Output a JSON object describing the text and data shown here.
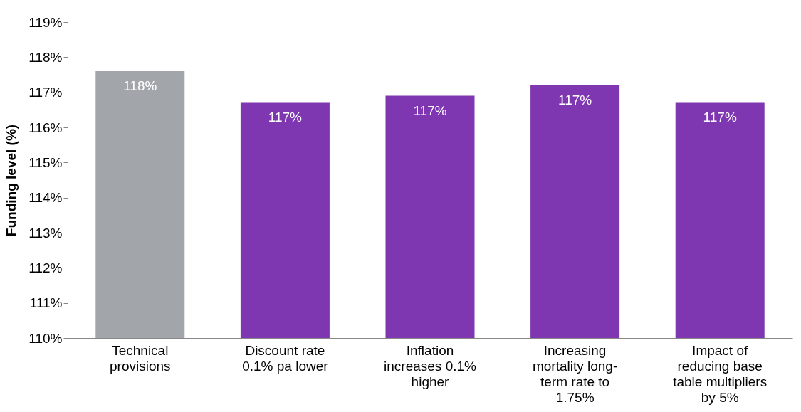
{
  "chart_data": {
    "type": "bar",
    "ylabel": "Funding level (%)",
    "categories": [
      "Technical provisions",
      "Discount rate 0.1% pa lower",
      "Inflation increases 0.1% higher",
      "Increasing mortality long-term rate to 1.75%",
      "Impact of reducing base table multipliers by 5%"
    ],
    "values": [
      117.6,
      116.7,
      116.9,
      117.2,
      116.7
    ],
    "colors": [
      "#a2a5a9",
      "#7e37b0",
      "#7e37b0",
      "#7e37b0",
      "#7e37b0"
    ],
    "value_labels": [
      "118%",
      "117%",
      "117%",
      "117%",
      "117%"
    ],
    "ylim": [
      110,
      119
    ],
    "yticks": [
      {
        "value": 110,
        "label": "110%"
      },
      {
        "value": 111,
        "label": "111%"
      },
      {
        "value": 112,
        "label": "112%"
      },
      {
        "value": 113,
        "label": "113%"
      },
      {
        "value": 114,
        "label": "114%"
      },
      {
        "value": 115,
        "label": "115%"
      },
      {
        "value": 116,
        "label": "116%"
      },
      {
        "value": 117,
        "label": "117%"
      },
      {
        "value": 118,
        "label": "118%"
      },
      {
        "value": 119,
        "label": "119%"
      }
    ],
    "grid": false
  }
}
